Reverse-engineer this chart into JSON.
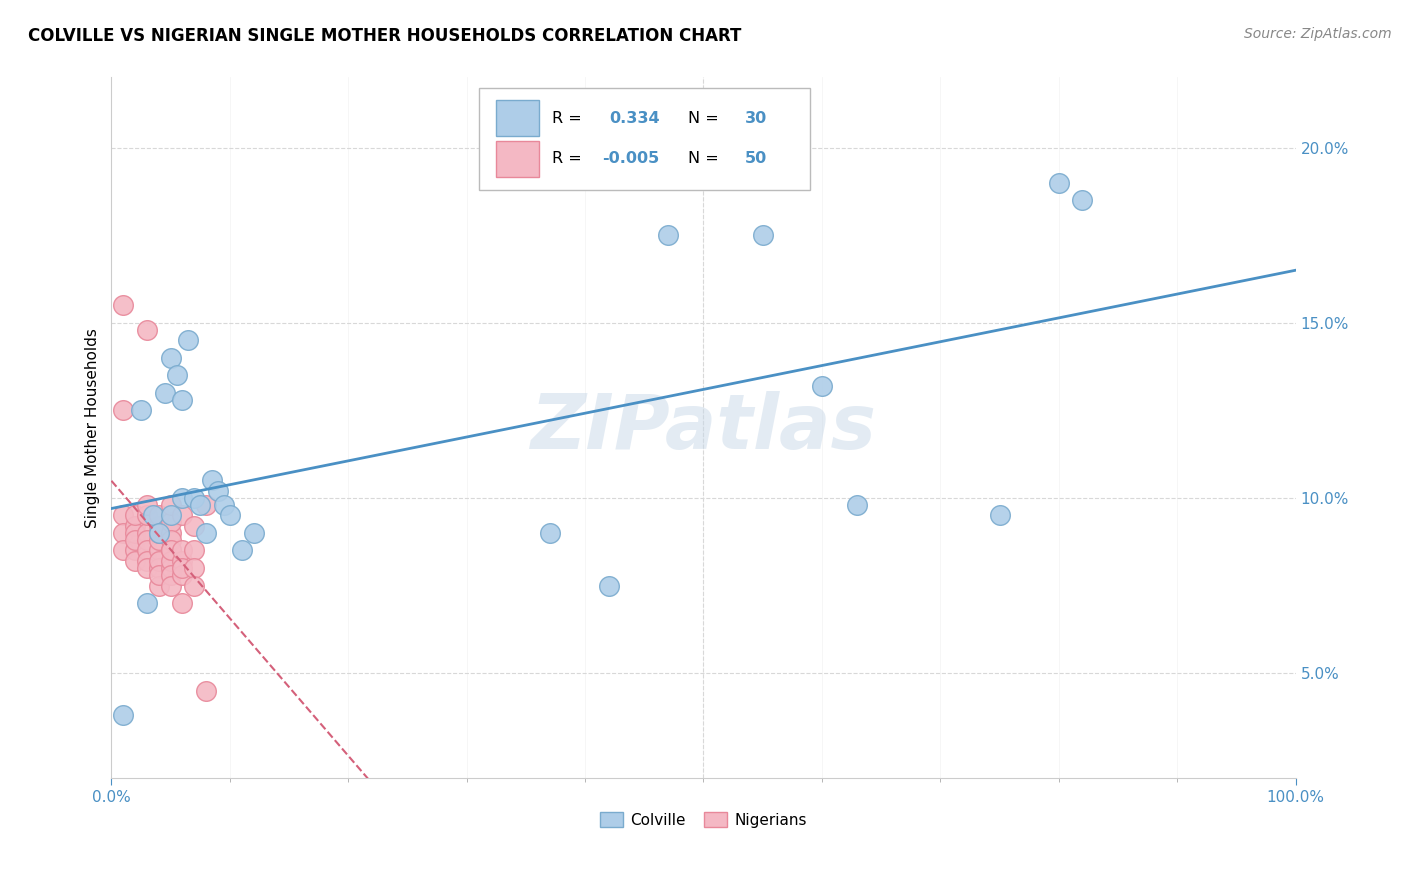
{
  "title": "COLVILLE VS NIGERIAN SINGLE MOTHER HOUSEHOLDS CORRELATION CHART",
  "source": "Source: ZipAtlas.com",
  "ylabel": "Single Mother Households",
  "colville_R": 0.334,
  "colville_N": 30,
  "nigerian_R": -0.005,
  "nigerian_N": 50,
  "colville_color": "#aecde8",
  "nigerian_color": "#f4b8c4",
  "colville_edge_color": "#7aabce",
  "nigerian_edge_color": "#e8889a",
  "colville_line_color": "#4a90c4",
  "nigerian_line_color": "#d4607a",
  "background_color": "#ffffff",
  "grid_color": "#d8d8d8",
  "colville_x": [
    1.0,
    2.5,
    3.0,
    3.5,
    4.0,
    4.5,
    5.0,
    5.0,
    5.5,
    6.0,
    6.0,
    6.5,
    7.0,
    7.5,
    8.0,
    8.5,
    9.0,
    9.5,
    10.0,
    11.0,
    12.0,
    37.0,
    42.0,
    47.0,
    55.0,
    60.0,
    63.0,
    75.0,
    80.0,
    82.0
  ],
  "colville_y": [
    3.8,
    12.5,
    7.0,
    9.5,
    9.0,
    13.0,
    9.5,
    14.0,
    13.5,
    12.8,
    10.0,
    14.5,
    10.0,
    9.8,
    9.0,
    10.5,
    10.2,
    9.8,
    9.5,
    8.5,
    9.0,
    9.0,
    7.5,
    17.5,
    17.5,
    13.2,
    9.8,
    9.5,
    19.0,
    18.5
  ],
  "nigerian_x": [
    1,
    1,
    1,
    1,
    1,
    2,
    2,
    2,
    2,
    2,
    2,
    3,
    3,
    3,
    3,
    3,
    3,
    3,
    3,
    4,
    4,
    4,
    4,
    4,
    4,
    4,
    4,
    4,
    5,
    5,
    5,
    5,
    5,
    5,
    5,
    5,
    5,
    5,
    6,
    6,
    6,
    6,
    6,
    6,
    7,
    7,
    7,
    7,
    8,
    8
  ],
  "nigerian_y": [
    9.5,
    9.0,
    8.5,
    15.5,
    12.5,
    9.2,
    8.5,
    8.2,
    9.0,
    8.8,
    9.5,
    9.0,
    8.8,
    8.5,
    8.2,
    8.0,
    9.5,
    9.8,
    14.8,
    9.2,
    8.5,
    8.0,
    7.5,
    8.8,
    9.5,
    9.0,
    8.2,
    7.8,
    9.0,
    8.5,
    8.0,
    8.2,
    7.8,
    7.5,
    9.3,
    9.8,
    8.8,
    8.5,
    8.2,
    7.8,
    8.5,
    7.0,
    8.0,
    9.5,
    8.5,
    8.0,
    9.2,
    7.5,
    4.5,
    9.8
  ],
  "xlim": [
    0,
    100
  ],
  "ylim": [
    2.0,
    22.0
  ],
  "yticks": [
    5.0,
    10.0,
    15.0,
    20.0
  ],
  "xticks": [
    0,
    100
  ],
  "minor_xticks": [
    10,
    20,
    30,
    40,
    50,
    60,
    70,
    80,
    90
  ],
  "watermark": "ZIPatlas",
  "figsize": [
    14.06,
    8.92
  ],
  "dpi": 100
}
